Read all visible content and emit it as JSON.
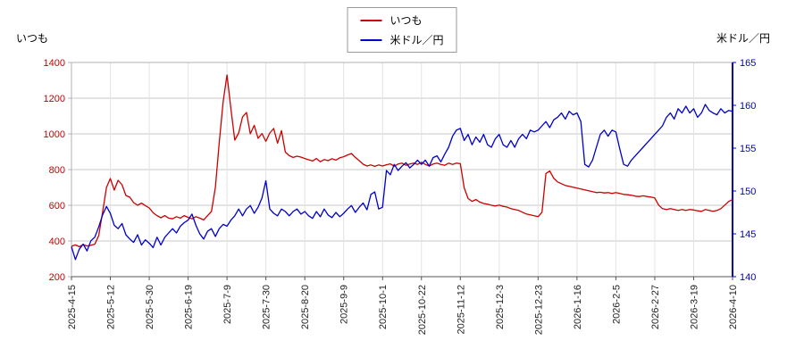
{
  "legend": {
    "items": [
      {
        "label": "いつも",
        "color": "#cc0000"
      },
      {
        "label": "米ドル／円",
        "color": "#0000cc"
      }
    ]
  },
  "left_axis_title": "いつも",
  "right_axis_title": "米ドル／円",
  "chart_data": {
    "type": "line",
    "title": "",
    "legend_position": "top-center",
    "grid": true,
    "categories": [
      "2025-4-15",
      "2025-5-12",
      "2025-5-30",
      "2025-6-19",
      "2025-7-9",
      "2025-7-30",
      "2025-8-20",
      "2025-9-9",
      "2025-10-1",
      "2025-10-22",
      "2025-11-12",
      "2025-12-3",
      "2025-12-23",
      "2026-1-16",
      "2026-2-5",
      "2026-2-27",
      "2026-3-19",
      "2026-4-10"
    ],
    "left_axis": {
      "title": "いつも",
      "min": 200,
      "max": 1400,
      "step": 200,
      "color": "#cc0000"
    },
    "right_axis": {
      "title": "米ドル／円",
      "min": 140,
      "max": 165,
      "step": 5,
      "color": "#0000cc"
    },
    "colors": {
      "h_grid": "#c8c8c8",
      "v_grid": "#e3e3e3",
      "frame": "#b0b0b0",
      "bottom_axis": "#555555",
      "tick_text": "#222222"
    },
    "series": [
      {
        "name": "いつも",
        "axis": "left",
        "color": "#cc0000",
        "values": [
          370,
          378,
          368,
          380,
          372,
          376,
          382,
          430,
          560,
          700,
          750,
          685,
          740,
          715,
          655,
          645,
          615,
          600,
          612,
          598,
          585,
          558,
          542,
          530,
          542,
          528,
          524,
          536,
          528,
          542,
          532,
          524,
          536,
          528,
          518,
          542,
          565,
          700,
          950,
          1180,
          1330,
          1140,
          965,
          1005,
          1095,
          1120,
          1000,
          1048,
          975,
          1002,
          958,
          1005,
          1030,
          948,
          1018,
          898,
          878,
          868,
          875,
          870,
          862,
          855,
          848,
          862,
          844,
          856,
          850,
          861,
          853,
          866,
          872,
          882,
          890,
          868,
          850,
          830,
          820,
          826,
          818,
          826,
          820,
          827,
          832,
          819,
          831,
          836,
          824,
          831,
          836,
          829,
          841,
          829,
          820,
          831,
          836,
          829,
          824,
          836,
          829,
          836,
          833,
          698,
          638,
          622,
          632,
          618,
          610,
          606,
          600,
          596,
          601,
          594,
          590,
          581,
          576,
          571,
          561,
          551,
          546,
          541,
          536,
          561,
          778,
          792,
          752,
          731,
          721,
          711,
          706,
          701,
          696,
          691,
          686,
          681,
          676,
          671,
          673,
          669,
          671,
          666,
          671,
          666,
          661,
          659,
          656,
          651,
          649,
          653,
          649,
          646,
          641,
          601,
          581,
          576,
          581,
          576,
          571,
          576,
          571,
          576,
          574,
          569,
          566,
          576,
          571,
          566,
          571,
          581,
          601,
          621,
          632
        ]
      },
      {
        "name": "米ドル／円",
        "axis": "right",
        "color": "#0000cc",
        "values": [
          143.5,
          142.0,
          143.2,
          143.8,
          143.0,
          144.2,
          144.6,
          145.8,
          147.2,
          148.2,
          147.4,
          146.0,
          145.6,
          146.2,
          144.9,
          144.4,
          144.0,
          144.9,
          143.7,
          144.3,
          143.9,
          143.4,
          144.6,
          143.7,
          144.6,
          145.1,
          145.6,
          145.1,
          145.9,
          146.3,
          146.6,
          147.3,
          146.0,
          145.0,
          144.4,
          145.3,
          145.6,
          144.7,
          145.6,
          146.1,
          145.9,
          146.6,
          147.1,
          147.9,
          147.1,
          147.9,
          148.3,
          147.4,
          148.1,
          149.2,
          151.2,
          147.9,
          147.4,
          147.1,
          147.9,
          147.6,
          147.1,
          147.6,
          147.9,
          147.3,
          147.6,
          147.1,
          146.8,
          147.6,
          147.0,
          147.9,
          147.2,
          146.9,
          147.5,
          147.0,
          147.4,
          147.9,
          148.3,
          147.5,
          148.1,
          148.6,
          147.8,
          149.6,
          149.9,
          147.9,
          148.1,
          152.4,
          151.9,
          153.1,
          152.4,
          152.9,
          153.3,
          152.7,
          153.1,
          153.6,
          153.1,
          153.6,
          152.9,
          153.9,
          154.1,
          153.4,
          154.3,
          155.1,
          156.4,
          157.1,
          157.3,
          155.9,
          156.6,
          155.4,
          156.3,
          155.7,
          156.6,
          155.4,
          155.1,
          156.1,
          156.6,
          155.4,
          155.1,
          155.9,
          155.1,
          156.1,
          156.6,
          156.1,
          157.1,
          156.9,
          157.1,
          157.6,
          158.1,
          157.4,
          158.3,
          158.6,
          159.1,
          158.4,
          159.3,
          158.9,
          159.1,
          158.1,
          153.1,
          152.8,
          153.6,
          155.1,
          156.6,
          157.1,
          156.4,
          157.1,
          156.9,
          154.9,
          153.1,
          152.9,
          153.6,
          154.1,
          154.6,
          155.1,
          155.6,
          156.1,
          156.6,
          157.1,
          157.6,
          158.6,
          159.1,
          158.4,
          159.6,
          159.1,
          159.9,
          159.1,
          159.6,
          158.6,
          159.1,
          160.1,
          159.4,
          159.1,
          158.9,
          159.6,
          159.1,
          159.4,
          159.3
        ]
      }
    ]
  }
}
